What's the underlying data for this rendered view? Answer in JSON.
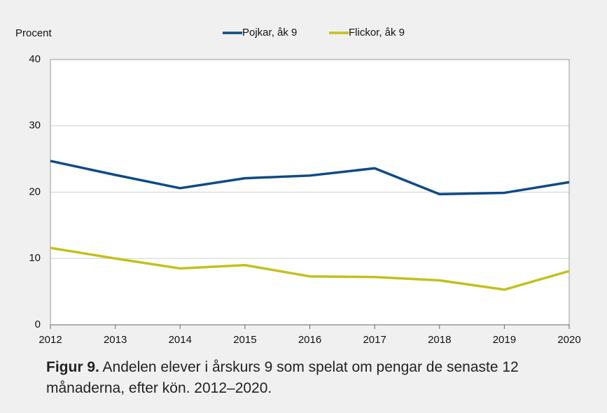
{
  "chart_data": {
    "type": "line",
    "ylabel": "Procent",
    "x": [
      2012,
      2013,
      2014,
      2015,
      2016,
      2017,
      2018,
      2019,
      2020
    ],
    "series": [
      {
        "name": "Pojkar, åk 9",
        "color": "#0e4a86",
        "values": [
          24.7,
          22.6,
          20.6,
          22.1,
          22.5,
          23.6,
          19.7,
          19.9,
          21.5
        ]
      },
      {
        "name": "Flickor, åk 9",
        "color": "#c3c01c",
        "values": [
          11.6,
          10.0,
          8.5,
          9.0,
          7.3,
          7.2,
          6.7,
          5.3,
          8.1
        ]
      }
    ],
    "xlim": [
      2012,
      2020
    ],
    "xticks": [
      2012,
      2013,
      2014,
      2015,
      2016,
      2017,
      2018,
      2019,
      2020
    ],
    "ylim": [
      0,
      40
    ],
    "yticks": [
      0,
      10,
      20,
      30,
      40
    ],
    "grid": true,
    "legend": "top",
    "caption_label": "Figur 9.",
    "caption": "Andelen elever i årskurs 9 som spelat om pengar de senaste 12 månaderna, efter kön. 2012–2020."
  }
}
